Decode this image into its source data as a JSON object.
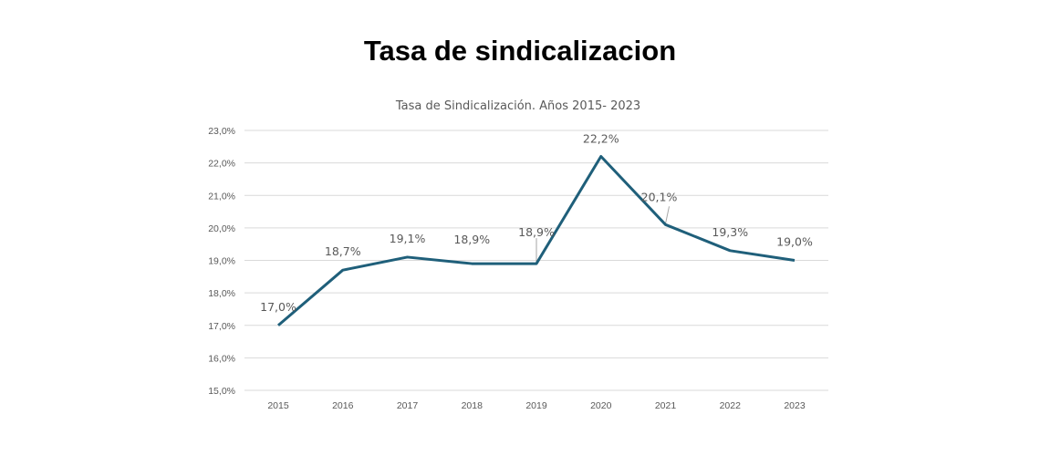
{
  "page": {
    "title": "Tasa de sindicalizacion"
  },
  "chart_data": {
    "type": "line",
    "title": "Tasa de Sindicalización. Años 2015- 2023",
    "xlabel": "",
    "ylabel": "",
    "categories": [
      "2015",
      "2016",
      "2017",
      "2018",
      "2019",
      "2020",
      "2021",
      "2022",
      "2023"
    ],
    "series": [
      {
        "name": "Tasa de Sindicalización",
        "color": "#1f5f7a",
        "values": [
          17.0,
          18.7,
          19.1,
          18.9,
          18.9,
          22.2,
          20.1,
          19.3,
          19.0
        ],
        "labels": [
          "17,0%",
          "18,7%",
          "19,1%",
          "18,9%",
          "18,9%",
          "22,2%",
          "20,1%",
          "19,3%",
          "19,0%"
        ]
      }
    ],
    "ylim": [
      15,
      23
    ],
    "yticks": [
      15,
      16,
      17,
      18,
      19,
      20,
      21,
      22,
      23
    ],
    "ytick_labels": [
      "15,0%",
      "16,0%",
      "17,0%",
      "18,0%",
      "19,0%",
      "20,0%",
      "21,0%",
      "22,0%",
      "23,0%"
    ],
    "grid": true,
    "legend": "none"
  }
}
